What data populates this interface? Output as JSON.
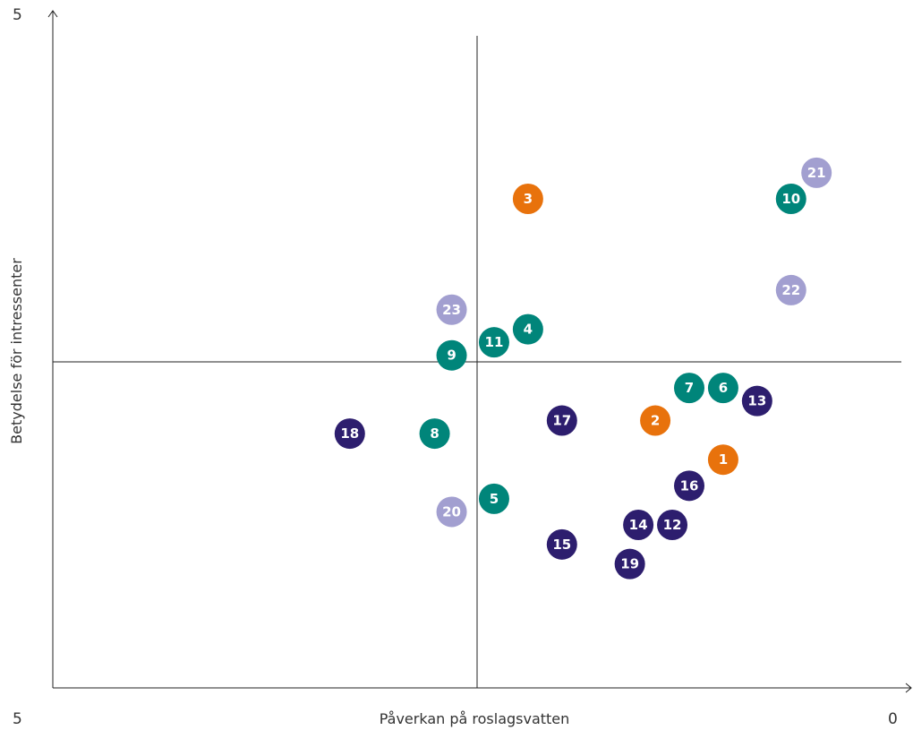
{
  "chart_data": {
    "type": "scatter",
    "xlabel": "Påverkan på roslagsvatten",
    "ylabel": "Betydelse för intressenter",
    "x_axis": {
      "start_label": "5",
      "end_label": "0",
      "reversed": true,
      "range": [
        5,
        0
      ]
    },
    "y_axis": {
      "top_label": "5",
      "range": [
        0,
        5
      ]
    },
    "quadrant_dividers": {
      "x": 2.5,
      "y": 2.5
    },
    "grid": false,
    "legend": "none",
    "colors": {
      "orange": "#e8720c",
      "teal": "#00857a",
      "purple": "#2d1e6e",
      "lavender": "#a29fd0"
    },
    "points": [
      {
        "label": "1",
        "x": 1.05,
        "y": 1.75,
        "color": "orange"
      },
      {
        "label": "2",
        "x": 1.45,
        "y": 2.05,
        "color": "orange"
      },
      {
        "label": "3",
        "x": 2.2,
        "y": 3.75,
        "color": "orange"
      },
      {
        "label": "4",
        "x": 2.2,
        "y": 2.75,
        "color": "teal"
      },
      {
        "label": "5",
        "x": 2.4,
        "y": 1.45,
        "color": "teal"
      },
      {
        "label": "6",
        "x": 1.05,
        "y": 2.3,
        "color": "teal"
      },
      {
        "label": "7",
        "x": 1.25,
        "y": 2.3,
        "color": "teal"
      },
      {
        "label": "8",
        "x": 2.75,
        "y": 1.95,
        "color": "teal"
      },
      {
        "label": "9",
        "x": 2.65,
        "y": 2.55,
        "color": "teal"
      },
      {
        "label": "10",
        "x": 0.65,
        "y": 3.75,
        "color": "teal"
      },
      {
        "label": "11",
        "x": 2.4,
        "y": 2.65,
        "color": "teal"
      },
      {
        "label": "12",
        "x": 1.35,
        "y": 1.25,
        "color": "purple"
      },
      {
        "label": "13",
        "x": 0.85,
        "y": 2.2,
        "color": "purple"
      },
      {
        "label": "14",
        "x": 1.55,
        "y": 1.25,
        "color": "purple"
      },
      {
        "label": "15",
        "x": 2.0,
        "y": 1.1,
        "color": "purple"
      },
      {
        "label": "16",
        "x": 1.25,
        "y": 1.55,
        "color": "purple"
      },
      {
        "label": "17",
        "x": 2.0,
        "y": 2.05,
        "color": "purple"
      },
      {
        "label": "18",
        "x": 3.25,
        "y": 1.95,
        "color": "purple"
      },
      {
        "label": "19",
        "x": 1.6,
        "y": 0.95,
        "color": "purple"
      },
      {
        "label": "20",
        "x": 2.65,
        "y": 1.35,
        "color": "lavender"
      },
      {
        "label": "21",
        "x": 0.5,
        "y": 3.95,
        "color": "lavender"
      },
      {
        "label": "22",
        "x": 0.65,
        "y": 3.05,
        "color": "lavender"
      },
      {
        "label": "23",
        "x": 2.65,
        "y": 2.9,
        "color": "lavender"
      }
    ]
  }
}
